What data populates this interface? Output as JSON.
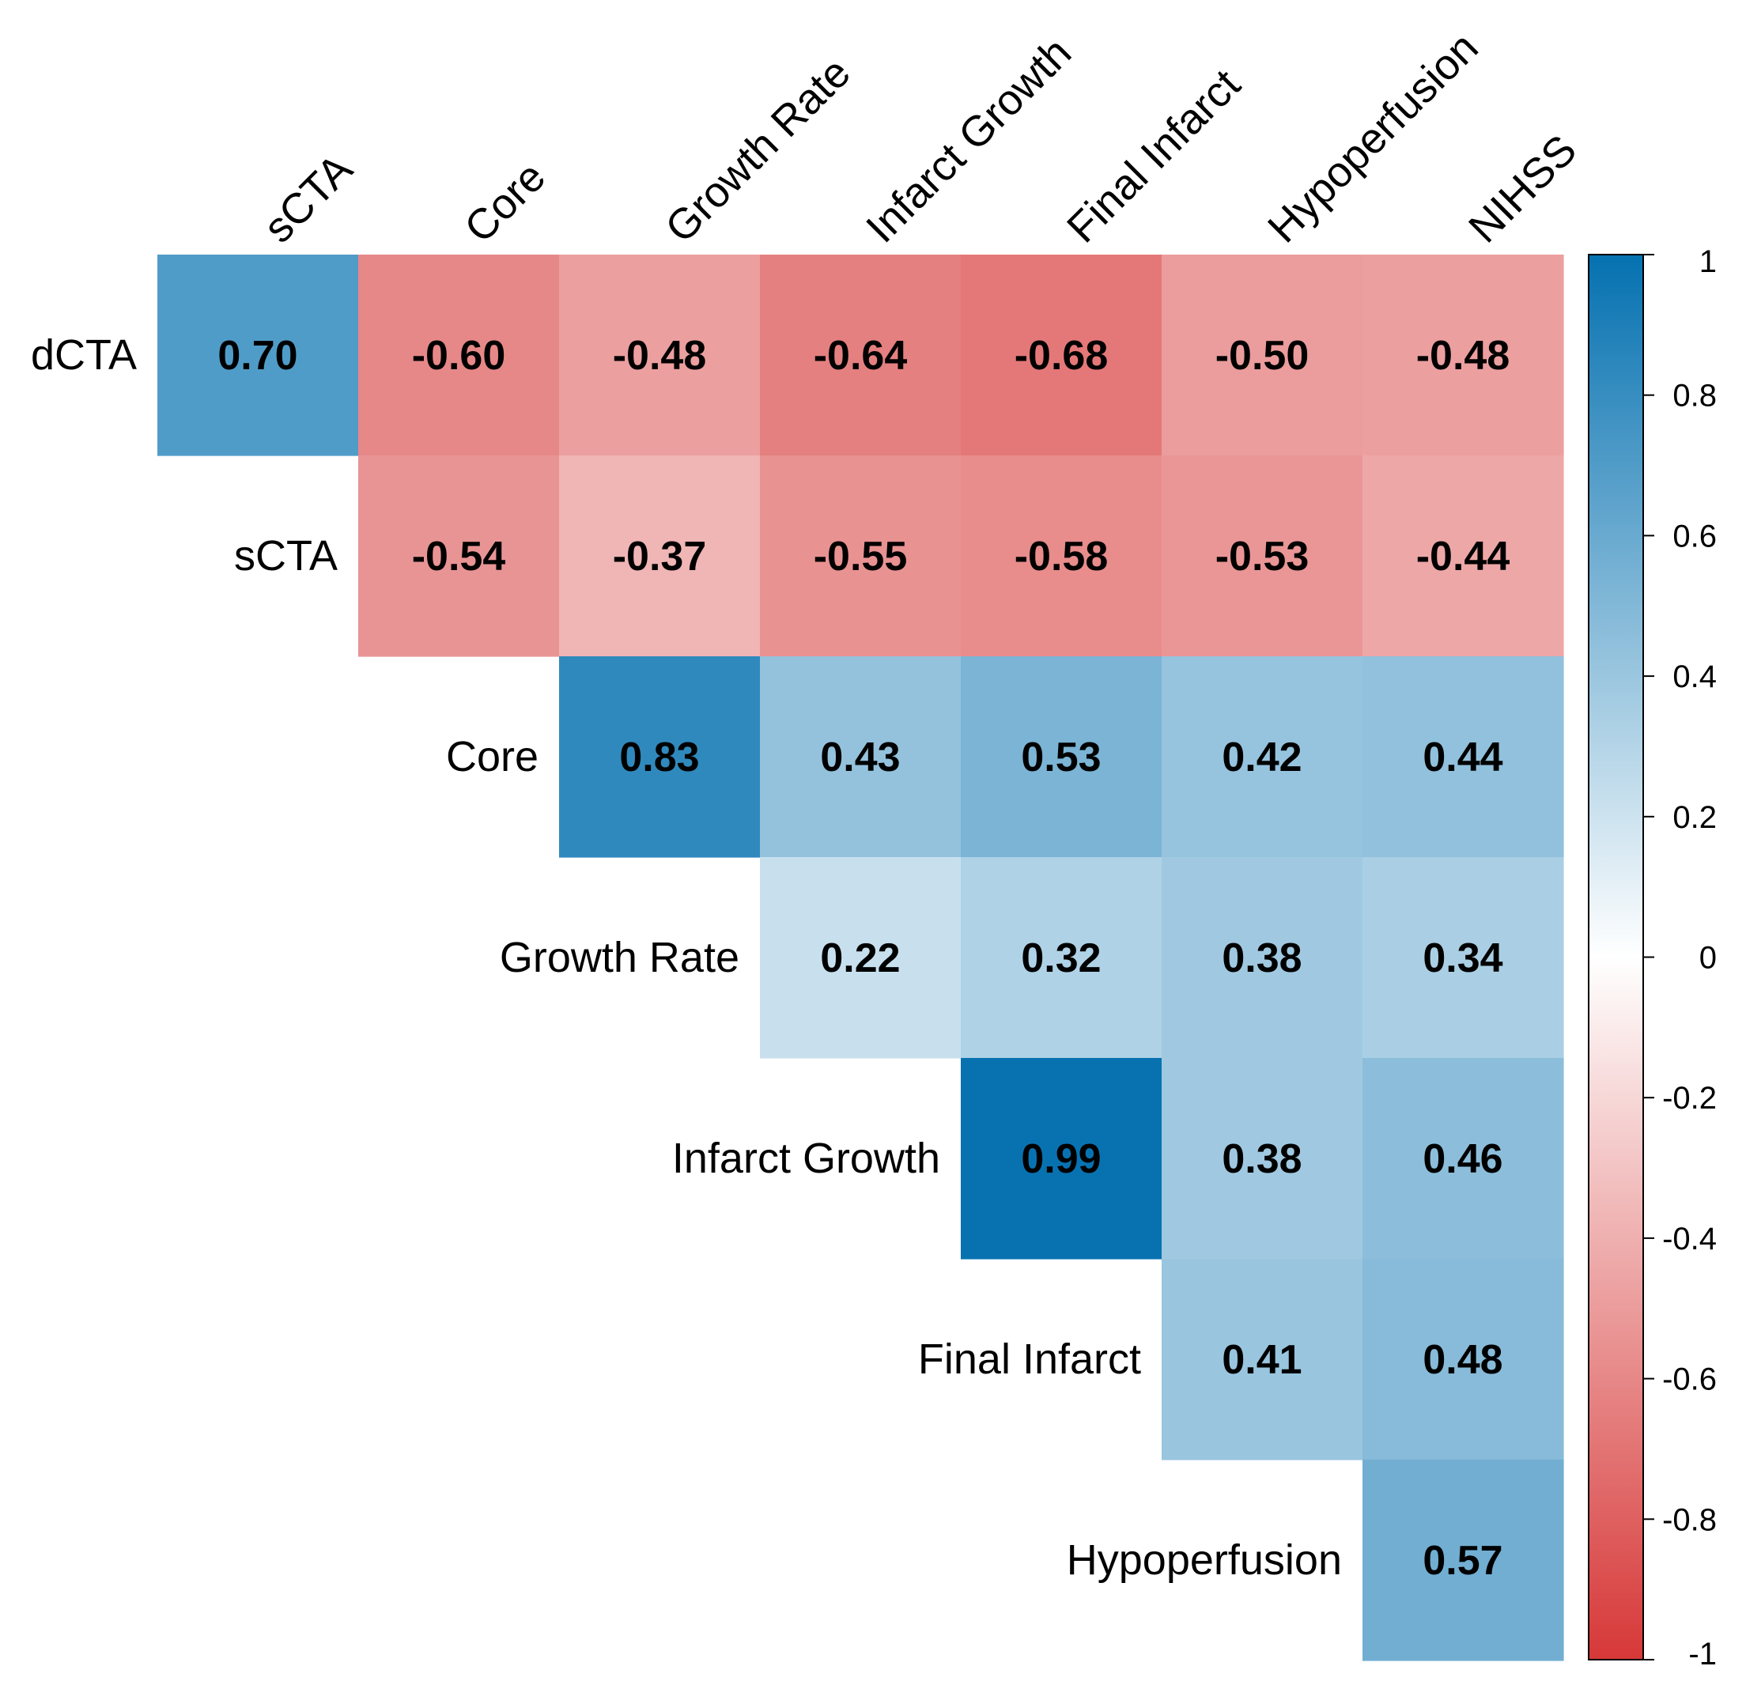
{
  "chart_data": {
    "type": "heatmap",
    "title": "",
    "columns": [
      "sCTA",
      "Core",
      "Growth Rate",
      "Infarct Growth",
      "Final Infarct",
      "Hypoperfusion",
      "NIHSS"
    ],
    "rows": [
      "dCTA",
      "sCTA",
      "Core",
      "Growth Rate",
      "Infarct Growth",
      "Final Infarct",
      "Hypoperfusion"
    ],
    "cells": [
      {
        "row": "dCTA",
        "col": "sCTA",
        "value": 0.7,
        "label": "0.70"
      },
      {
        "row": "dCTA",
        "col": "Core",
        "value": -0.6,
        "label": "-0.60"
      },
      {
        "row": "dCTA",
        "col": "Growth Rate",
        "value": -0.48,
        "label": "-0.48"
      },
      {
        "row": "dCTA",
        "col": "Infarct Growth",
        "value": -0.64,
        "label": "-0.64"
      },
      {
        "row": "dCTA",
        "col": "Final Infarct",
        "value": -0.68,
        "label": "-0.68"
      },
      {
        "row": "dCTA",
        "col": "Hypoperfusion",
        "value": -0.5,
        "label": "-0.50"
      },
      {
        "row": "dCTA",
        "col": "NIHSS",
        "value": -0.48,
        "label": "-0.48"
      },
      {
        "row": "sCTA",
        "col": "Core",
        "value": -0.54,
        "label": "-0.54"
      },
      {
        "row": "sCTA",
        "col": "Growth Rate",
        "value": -0.37,
        "label": "-0.37"
      },
      {
        "row": "sCTA",
        "col": "Infarct Growth",
        "value": -0.55,
        "label": "-0.55"
      },
      {
        "row": "sCTA",
        "col": "Final Infarct",
        "value": -0.58,
        "label": "-0.58"
      },
      {
        "row": "sCTA",
        "col": "Hypoperfusion",
        "value": -0.53,
        "label": "-0.53"
      },
      {
        "row": "sCTA",
        "col": "NIHSS",
        "value": -0.44,
        "label": "-0.44"
      },
      {
        "row": "Core",
        "col": "Growth Rate",
        "value": 0.83,
        "label": "0.83"
      },
      {
        "row": "Core",
        "col": "Infarct Growth",
        "value": 0.43,
        "label": "0.43"
      },
      {
        "row": "Core",
        "col": "Final Infarct",
        "value": 0.53,
        "label": "0.53"
      },
      {
        "row": "Core",
        "col": "Hypoperfusion",
        "value": 0.42,
        "label": "0.42"
      },
      {
        "row": "Core",
        "col": "NIHSS",
        "value": 0.44,
        "label": "0.44"
      },
      {
        "row": "Growth Rate",
        "col": "Infarct Growth",
        "value": 0.22,
        "label": "0.22"
      },
      {
        "row": "Growth Rate",
        "col": "Final Infarct",
        "value": 0.32,
        "label": "0.32"
      },
      {
        "row": "Growth Rate",
        "col": "Hypoperfusion",
        "value": 0.38,
        "label": "0.38"
      },
      {
        "row": "Growth Rate",
        "col": "NIHSS",
        "value": 0.34,
        "label": "0.34"
      },
      {
        "row": "Infarct Growth",
        "col": "Final Infarct",
        "value": 0.99,
        "label": "0.99"
      },
      {
        "row": "Infarct Growth",
        "col": "Hypoperfusion",
        "value": 0.38,
        "label": "0.38"
      },
      {
        "row": "Infarct Growth",
        "col": "NIHSS",
        "value": 0.46,
        "label": "0.46"
      },
      {
        "row": "Final Infarct",
        "col": "Hypoperfusion",
        "value": 0.41,
        "label": "0.41"
      },
      {
        "row": "Final Infarct",
        "col": "NIHSS",
        "value": 0.48,
        "label": "0.48"
      },
      {
        "row": "Hypoperfusion",
        "col": "NIHSS",
        "value": 0.57,
        "label": "0.57"
      }
    ],
    "colorbar": {
      "range": [
        -1,
        1
      ],
      "ticks": [
        1,
        0.8,
        0.6,
        0.4,
        0.2,
        0,
        -0.2,
        -0.4,
        -0.6,
        -0.8,
        -1
      ],
      "tick_labels": [
        "1",
        "0.8",
        "0.6",
        "0.4",
        "0.2",
        "0",
        "-0.2",
        "-0.4",
        "-0.6",
        "-0.8",
        "-1"
      ],
      "colors": {
        "negative": "#d73838",
        "zero": "#ffffff",
        "positive": "#0571b0"
      },
      "placement": "right"
    }
  }
}
